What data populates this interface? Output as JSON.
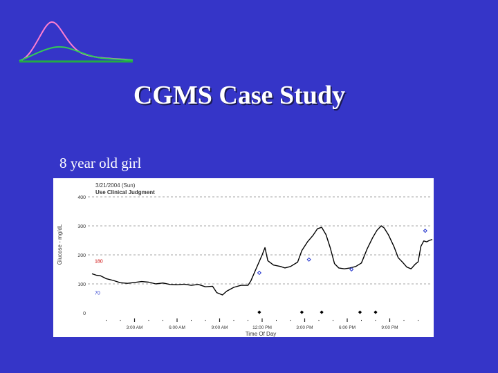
{
  "slide": {
    "title": "CGMS Case Study",
    "subtitle": "8 year old girl"
  },
  "logo": {
    "icon": "glucose-curve-icon",
    "colors": {
      "pink": "#ff7fd0",
      "green": "#33cc55",
      "baseline": "#22aa44"
    }
  },
  "chart_data": {
    "type": "line",
    "date_label": "3/21/2004 (Sun)",
    "note": "Use Clinical Judgment",
    "ylabel": "Glucose - mg/dL",
    "xlabel": "Time Of Day",
    "ylim": [
      0,
      400
    ],
    "xlim": [
      0,
      24
    ],
    "yticks": [
      0,
      100,
      200,
      300,
      400
    ],
    "xticks": [
      {
        "x": 3,
        "label": "3:00 AM"
      },
      {
        "x": 6,
        "label": "6:00 AM"
      },
      {
        "x": 9,
        "label": "9:00 AM"
      },
      {
        "x": 12,
        "label": "12:00 PM"
      },
      {
        "x": 15,
        "label": "3:00 PM"
      },
      {
        "x": 18,
        "label": "6:00 PM"
      },
      {
        "x": 21,
        "label": "9:00 PM"
      }
    ],
    "thresholds": [
      {
        "value": 180,
        "label": "180",
        "color": "#cc0000"
      },
      {
        "value": 70,
        "label": "70",
        "color": "#2233cc"
      }
    ],
    "grid": true,
    "series": [
      {
        "color": "#000000",
        "points": [
          [
            0.0,
            135
          ],
          [
            0.3,
            130
          ],
          [
            0.6,
            128
          ],
          [
            1.0,
            118
          ],
          [
            1.5,
            112
          ],
          [
            2.0,
            104
          ],
          [
            2.5,
            102
          ],
          [
            3.0,
            105
          ],
          [
            3.5,
            108
          ],
          [
            4.0,
            106
          ],
          [
            4.5,
            100
          ],
          [
            5.0,
            103
          ],
          [
            5.5,
            98
          ],
          [
            6.0,
            97
          ],
          [
            6.5,
            99
          ],
          [
            7.0,
            95
          ],
          [
            7.5,
            98
          ],
          [
            8.0,
            90
          ],
          [
            8.5,
            92
          ],
          [
            8.8,
            70
          ],
          [
            9.2,
            62
          ],
          [
            9.5,
            75
          ],
          [
            10.0,
            88
          ],
          [
            10.5,
            95
          ],
          [
            11.0,
            95
          ],
          [
            11.2,
            110
          ],
          [
            11.6,
            155
          ],
          [
            12.0,
            200
          ],
          [
            12.2,
            225
          ],
          [
            12.4,
            180
          ],
          [
            12.8,
            165
          ],
          [
            13.3,
            160
          ],
          [
            13.6,
            155
          ],
          [
            14.0,
            160
          ],
          [
            14.5,
            175
          ],
          [
            14.8,
            215
          ],
          [
            15.2,
            245
          ],
          [
            15.6,
            268
          ],
          [
            15.9,
            290
          ],
          [
            16.2,
            295
          ],
          [
            16.5,
            270
          ],
          [
            16.8,
            225
          ],
          [
            17.1,
            170
          ],
          [
            17.4,
            155
          ],
          [
            17.8,
            152
          ],
          [
            18.2,
            155
          ],
          [
            18.6,
            160
          ],
          [
            19.0,
            172
          ],
          [
            19.4,
            220
          ],
          [
            19.8,
            260
          ],
          [
            20.1,
            285
          ],
          [
            20.4,
            300
          ],
          [
            20.6,
            293
          ],
          [
            20.9,
            270
          ],
          [
            21.3,
            228
          ],
          [
            21.6,
            190
          ],
          [
            21.9,
            175
          ],
          [
            22.2,
            158
          ],
          [
            22.5,
            152
          ],
          [
            22.8,
            168
          ],
          [
            23.0,
            176
          ],
          [
            23.2,
            230
          ],
          [
            23.4,
            248
          ],
          [
            23.6,
            245
          ],
          [
            23.8,
            250
          ],
          [
            24.0,
            253
          ]
        ]
      }
    ],
    "meter_readings": [
      {
        "x": 11.8,
        "y": 138
      },
      {
        "x": 15.3,
        "y": 184
      },
      {
        "x": 18.3,
        "y": 150
      },
      {
        "x": 23.5,
        "y": 283
      }
    ],
    "event_markers": [
      11.8,
      14.8,
      16.2,
      18.9,
      20.0
    ],
    "meter_marker_color": "#2233cc"
  }
}
